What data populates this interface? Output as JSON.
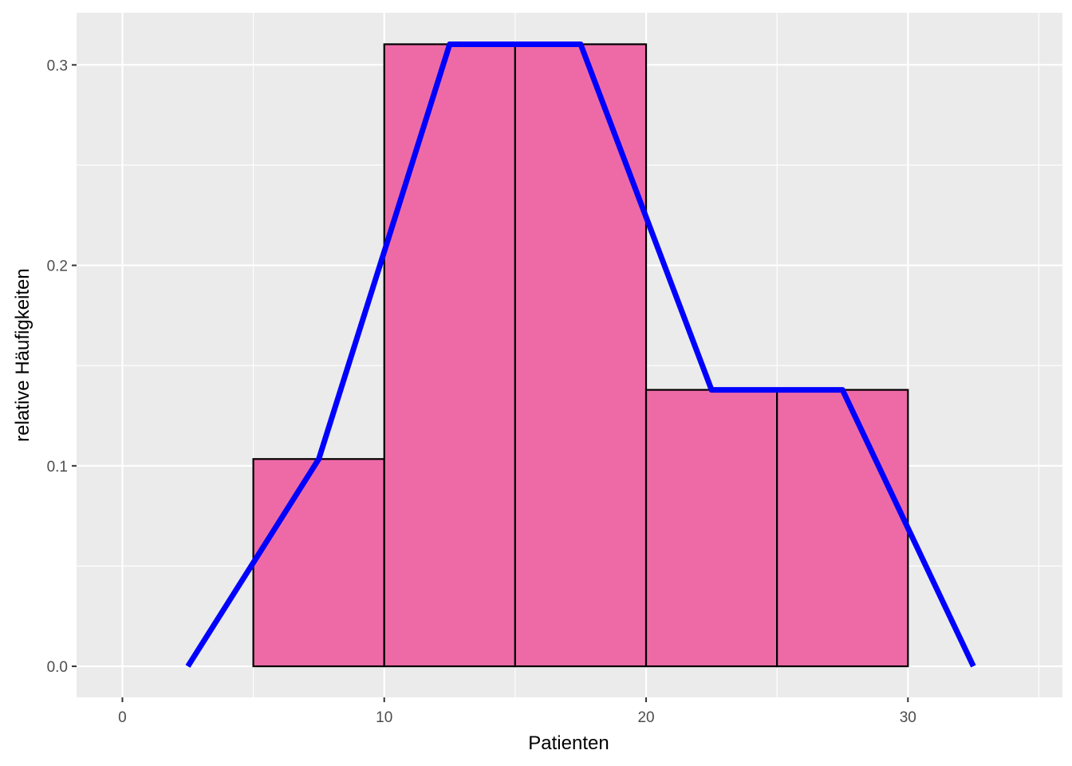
{
  "chart_data": {
    "type": "bar",
    "subtype": "histogram-with-frequency-polygon",
    "title": "",
    "xlabel": "Patienten",
    "ylabel": "relative Häufigkeiten",
    "xlim": [
      -1.75,
      35.9
    ],
    "ylim": [
      -0.0155,
      0.326
    ],
    "x_ticks": [
      0,
      10,
      20,
      30
    ],
    "x_minor_ticks": [
      5,
      15,
      25,
      35
    ],
    "y_ticks": [
      0.0,
      0.1,
      0.2,
      0.3
    ],
    "y_minor_ticks": [
      0.05,
      0.15,
      0.25
    ],
    "x_tick_labels": [
      "0",
      "10",
      "20",
      "30"
    ],
    "y_tick_labels": [
      "0.0",
      "0.1",
      "0.2",
      "0.3"
    ],
    "grid": true,
    "bins": [
      {
        "x0": 5,
        "x1": 10,
        "value": 0.1034
      },
      {
        "x0": 10,
        "x1": 15,
        "value": 0.3103
      },
      {
        "x0": 15,
        "x1": 20,
        "value": 0.3103
      },
      {
        "x0": 20,
        "x1": 25,
        "value": 0.1379
      },
      {
        "x0": 25,
        "x1": 30,
        "value": 0.1379
      }
    ],
    "polygon": {
      "x": [
        2.5,
        7.5,
        12.5,
        17.5,
        22.5,
        27.5,
        32.5
      ],
      "y": [
        0.0,
        0.1034,
        0.3103,
        0.3103,
        0.1379,
        0.1379,
        0.0
      ]
    },
    "colors": {
      "panel_background": "#EBEBEB",
      "grid": "#FFFFFF",
      "bar_fill": "#EE6AA7",
      "bar_outline": "#000000",
      "polygon_line": "#0000FF"
    }
  }
}
